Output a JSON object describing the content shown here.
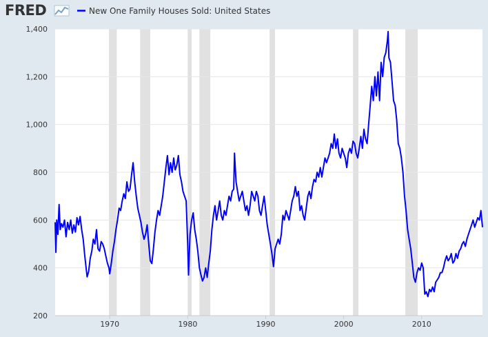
{
  "header": {
    "logo_text": "FRED",
    "legend_label": "New One Family Houses Sold: United States"
  },
  "colors": {
    "background": "#e1e9f0",
    "plot_background": "#ffffff",
    "grid": "#e6e6e6",
    "line": "#0000ff",
    "recession": "#e1e1e1",
    "logo_accent": "#7aa0c4"
  },
  "chart_data": {
    "type": "line",
    "title": "",
    "xlabel": "",
    "ylabel": "",
    "xlim": [
      1963,
      2017.8
    ],
    "ylim": [
      200,
      1400
    ],
    "y_ticks": [
      200,
      400,
      600,
      800,
      1000,
      1200,
      1400
    ],
    "y_tick_labels": [
      "200",
      "400",
      "600",
      "800",
      "1,000",
      "1,200",
      "1,400"
    ],
    "x_ticks": [
      1970,
      1980,
      1990,
      2000,
      2010
    ],
    "x_tick_labels": [
      "1970",
      "1980",
      "1990",
      "2000",
      "2010"
    ],
    "grid": "horizontal",
    "legend": "top-left",
    "recessions": [
      [
        1969.9,
        1970.9
      ],
      [
        1973.9,
        1975.2
      ],
      [
        1980.0,
        1980.5
      ],
      [
        1981.5,
        1982.9
      ],
      [
        1990.5,
        1991.2
      ],
      [
        2001.2,
        2001.9
      ],
      [
        2007.9,
        2009.5
      ]
    ],
    "series": [
      {
        "name": "New One Family Houses Sold: United States",
        "points": [
          [
            1963.0,
            591
          ],
          [
            1963.1,
            465
          ],
          [
            1963.2,
            600
          ],
          [
            1963.35,
            540
          ],
          [
            1963.5,
            665
          ],
          [
            1963.65,
            560
          ],
          [
            1963.8,
            585
          ],
          [
            1964.0,
            570
          ],
          [
            1964.2,
            600
          ],
          [
            1964.4,
            530
          ],
          [
            1964.6,
            590
          ],
          [
            1964.8,
            560
          ],
          [
            1965.0,
            600
          ],
          [
            1965.2,
            545
          ],
          [
            1965.4,
            580
          ],
          [
            1965.6,
            550
          ],
          [
            1965.8,
            610
          ],
          [
            1966.0,
            580
          ],
          [
            1966.2,
            615
          ],
          [
            1966.4,
            560
          ],
          [
            1966.6,
            520
          ],
          [
            1966.8,
            450
          ],
          [
            1967.0,
            390
          ],
          [
            1967.1,
            362
          ],
          [
            1967.3,
            385
          ],
          [
            1967.5,
            440
          ],
          [
            1967.7,
            470
          ],
          [
            1967.9,
            520
          ],
          [
            1968.1,
            500
          ],
          [
            1968.3,
            560
          ],
          [
            1968.5,
            480
          ],
          [
            1968.7,
            470
          ],
          [
            1968.9,
            510
          ],
          [
            1969.1,
            500
          ],
          [
            1969.3,
            480
          ],
          [
            1969.5,
            450
          ],
          [
            1969.7,
            420
          ],
          [
            1969.9,
            400
          ],
          [
            1970.0,
            375
          ],
          [
            1970.2,
            420
          ],
          [
            1970.4,
            470
          ],
          [
            1970.6,
            510
          ],
          [
            1970.8,
            560
          ],
          [
            1971.0,
            600
          ],
          [
            1971.2,
            650
          ],
          [
            1971.4,
            640
          ],
          [
            1971.6,
            680
          ],
          [
            1971.8,
            710
          ],
          [
            1972.0,
            690
          ],
          [
            1972.2,
            760
          ],
          [
            1972.4,
            720
          ],
          [
            1972.6,
            730
          ],
          [
            1972.8,
            790
          ],
          [
            1973.0,
            840
          ],
          [
            1973.2,
            760
          ],
          [
            1973.4,
            700
          ],
          [
            1973.6,
            650
          ],
          [
            1973.8,
            620
          ],
          [
            1974.0,
            590
          ],
          [
            1974.2,
            550
          ],
          [
            1974.4,
            520
          ],
          [
            1974.6,
            540
          ],
          [
            1974.8,
            580
          ],
          [
            1975.0,
            500
          ],
          [
            1975.2,
            430
          ],
          [
            1975.4,
            418
          ],
          [
            1975.6,
            480
          ],
          [
            1975.8,
            550
          ],
          [
            1976.0,
            600
          ],
          [
            1976.2,
            640
          ],
          [
            1976.4,
            620
          ],
          [
            1976.6,
            660
          ],
          [
            1976.8,
            700
          ],
          [
            1977.0,
            760
          ],
          [
            1977.2,
            820
          ],
          [
            1977.4,
            870
          ],
          [
            1977.6,
            790
          ],
          [
            1977.8,
            840
          ],
          [
            1978.0,
            800
          ],
          [
            1978.2,
            860
          ],
          [
            1978.4,
            810
          ],
          [
            1978.6,
            830
          ],
          [
            1978.8,
            870
          ],
          [
            1979.0,
            790
          ],
          [
            1979.2,
            760
          ],
          [
            1979.4,
            720
          ],
          [
            1979.6,
            700
          ],
          [
            1979.8,
            680
          ],
          [
            1980.0,
            500
          ],
          [
            1980.1,
            370
          ],
          [
            1980.3,
            540
          ],
          [
            1980.5,
            600
          ],
          [
            1980.7,
            630
          ],
          [
            1980.9,
            560
          ],
          [
            1981.1,
            520
          ],
          [
            1981.3,
            470
          ],
          [
            1981.5,
            400
          ],
          [
            1981.7,
            370
          ],
          [
            1981.9,
            345
          ],
          [
            1982.1,
            360
          ],
          [
            1982.3,
            400
          ],
          [
            1982.5,
            360
          ],
          [
            1982.7,
            420
          ],
          [
            1982.9,
            470
          ],
          [
            1983.1,
            560
          ],
          [
            1983.3,
            620
          ],
          [
            1983.5,
            660
          ],
          [
            1983.7,
            600
          ],
          [
            1983.9,
            640
          ],
          [
            1984.1,
            680
          ],
          [
            1984.3,
            620
          ],
          [
            1984.5,
            600
          ],
          [
            1984.7,
            640
          ],
          [
            1984.9,
            620
          ],
          [
            1985.1,
            660
          ],
          [
            1985.3,
            700
          ],
          [
            1985.5,
            680
          ],
          [
            1985.7,
            720
          ],
          [
            1985.9,
            730
          ],
          [
            1986.0,
            880
          ],
          [
            1986.2,
            760
          ],
          [
            1986.4,
            720
          ],
          [
            1986.6,
            680
          ],
          [
            1986.8,
            700
          ],
          [
            1987.0,
            720
          ],
          [
            1987.2,
            680
          ],
          [
            1987.4,
            640
          ],
          [
            1987.6,
            660
          ],
          [
            1987.8,
            620
          ],
          [
            1988.0,
            660
          ],
          [
            1988.2,
            720
          ],
          [
            1988.4,
            700
          ],
          [
            1988.6,
            680
          ],
          [
            1988.8,
            720
          ],
          [
            1989.0,
            700
          ],
          [
            1989.2,
            640
          ],
          [
            1989.4,
            620
          ],
          [
            1989.6,
            660
          ],
          [
            1989.8,
            700
          ],
          [
            1990.0,
            640
          ],
          [
            1990.2,
            580
          ],
          [
            1990.4,
            540
          ],
          [
            1990.6,
            500
          ],
          [
            1990.8,
            460
          ],
          [
            1991.0,
            405
          ],
          [
            1991.2,
            480
          ],
          [
            1991.4,
            500
          ],
          [
            1991.6,
            520
          ],
          [
            1991.8,
            500
          ],
          [
            1992.0,
            540
          ],
          [
            1992.2,
            620
          ],
          [
            1992.4,
            600
          ],
          [
            1992.6,
            640
          ],
          [
            1992.8,
            620
          ],
          [
            1993.0,
            600
          ],
          [
            1993.2,
            640
          ],
          [
            1993.4,
            680
          ],
          [
            1993.6,
            700
          ],
          [
            1993.8,
            740
          ],
          [
            1994.0,
            700
          ],
          [
            1994.2,
            720
          ],
          [
            1994.4,
            640
          ],
          [
            1994.6,
            660
          ],
          [
            1994.8,
            620
          ],
          [
            1995.0,
            600
          ],
          [
            1995.2,
            650
          ],
          [
            1995.4,
            700
          ],
          [
            1995.6,
            720
          ],
          [
            1995.8,
            690
          ],
          [
            1996.0,
            740
          ],
          [
            1996.2,
            770
          ],
          [
            1996.4,
            760
          ],
          [
            1996.6,
            800
          ],
          [
            1996.8,
            780
          ],
          [
            1997.0,
            820
          ],
          [
            1997.2,
            780
          ],
          [
            1997.4,
            820
          ],
          [
            1997.6,
            860
          ],
          [
            1997.8,
            840
          ],
          [
            1998.0,
            860
          ],
          [
            1998.2,
            880
          ],
          [
            1998.4,
            920
          ],
          [
            1998.6,
            900
          ],
          [
            1998.8,
            960
          ],
          [
            1999.0,
            900
          ],
          [
            1999.2,
            940
          ],
          [
            1999.4,
            880
          ],
          [
            1999.6,
            860
          ],
          [
            1999.8,
            900
          ],
          [
            2000.0,
            880
          ],
          [
            2000.2,
            860
          ],
          [
            2000.4,
            820
          ],
          [
            2000.6,
            880
          ],
          [
            2000.8,
            900
          ],
          [
            2001.0,
            880
          ],
          [
            2001.2,
            930
          ],
          [
            2001.4,
            920
          ],
          [
            2001.6,
            880
          ],
          [
            2001.8,
            860
          ],
          [
            2002.0,
            900
          ],
          [
            2002.2,
            950
          ],
          [
            2002.4,
            900
          ],
          [
            2002.6,
            980
          ],
          [
            2002.8,
            940
          ],
          [
            2003.0,
            920
          ],
          [
            2003.2,
            1000
          ],
          [
            2003.4,
            1080
          ],
          [
            2003.6,
            1160
          ],
          [
            2003.8,
            1100
          ],
          [
            2004.0,
            1200
          ],
          [
            2004.2,
            1120
          ],
          [
            2004.4,
            1220
          ],
          [
            2004.6,
            1100
          ],
          [
            2004.8,
            1260
          ],
          [
            2005.0,
            1200
          ],
          [
            2005.2,
            1280
          ],
          [
            2005.4,
            1300
          ],
          [
            2005.6,
            1350
          ],
          [
            2005.7,
            1389
          ],
          [
            2005.8,
            1280
          ],
          [
            2006.0,
            1260
          ],
          [
            2006.2,
            1180
          ],
          [
            2006.4,
            1100
          ],
          [
            2006.6,
            1080
          ],
          [
            2006.8,
            1020
          ],
          [
            2007.0,
            920
          ],
          [
            2007.2,
            900
          ],
          [
            2007.4,
            860
          ],
          [
            2007.6,
            800
          ],
          [
            2007.8,
            700
          ],
          [
            2008.0,
            640
          ],
          [
            2008.2,
            560
          ],
          [
            2008.4,
            520
          ],
          [
            2008.6,
            480
          ],
          [
            2008.8,
            420
          ],
          [
            2009.0,
            360
          ],
          [
            2009.2,
            340
          ],
          [
            2009.4,
            380
          ],
          [
            2009.6,
            400
          ],
          [
            2009.8,
            390
          ],
          [
            2010.0,
            420
          ],
          [
            2010.2,
            400
          ],
          [
            2010.4,
            290
          ],
          [
            2010.6,
            300
          ],
          [
            2010.8,
            280
          ],
          [
            2011.0,
            310
          ],
          [
            2011.2,
            300
          ],
          [
            2011.4,
            320
          ],
          [
            2011.6,
            300
          ],
          [
            2011.8,
            340
          ],
          [
            2012.0,
            350
          ],
          [
            2012.2,
            360
          ],
          [
            2012.4,
            380
          ],
          [
            2012.6,
            380
          ],
          [
            2012.8,
            400
          ],
          [
            2013.0,
            430
          ],
          [
            2013.2,
            450
          ],
          [
            2013.4,
            430
          ],
          [
            2013.6,
            440
          ],
          [
            2013.8,
            460
          ],
          [
            2014.0,
            420
          ],
          [
            2014.2,
            430
          ],
          [
            2014.4,
            460
          ],
          [
            2014.6,
            440
          ],
          [
            2014.8,
            470
          ],
          [
            2015.0,
            480
          ],
          [
            2015.2,
            500
          ],
          [
            2015.4,
            510
          ],
          [
            2015.6,
            490
          ],
          [
            2015.8,
            520
          ],
          [
            2016.0,
            540
          ],
          [
            2016.2,
            560
          ],
          [
            2016.4,
            580
          ],
          [
            2016.6,
            600
          ],
          [
            2016.8,
            570
          ],
          [
            2017.0,
            590
          ],
          [
            2017.2,
            610
          ],
          [
            2017.4,
            600
          ],
          [
            2017.6,
            640
          ],
          [
            2017.8,
            570
          ]
        ]
      }
    ]
  }
}
